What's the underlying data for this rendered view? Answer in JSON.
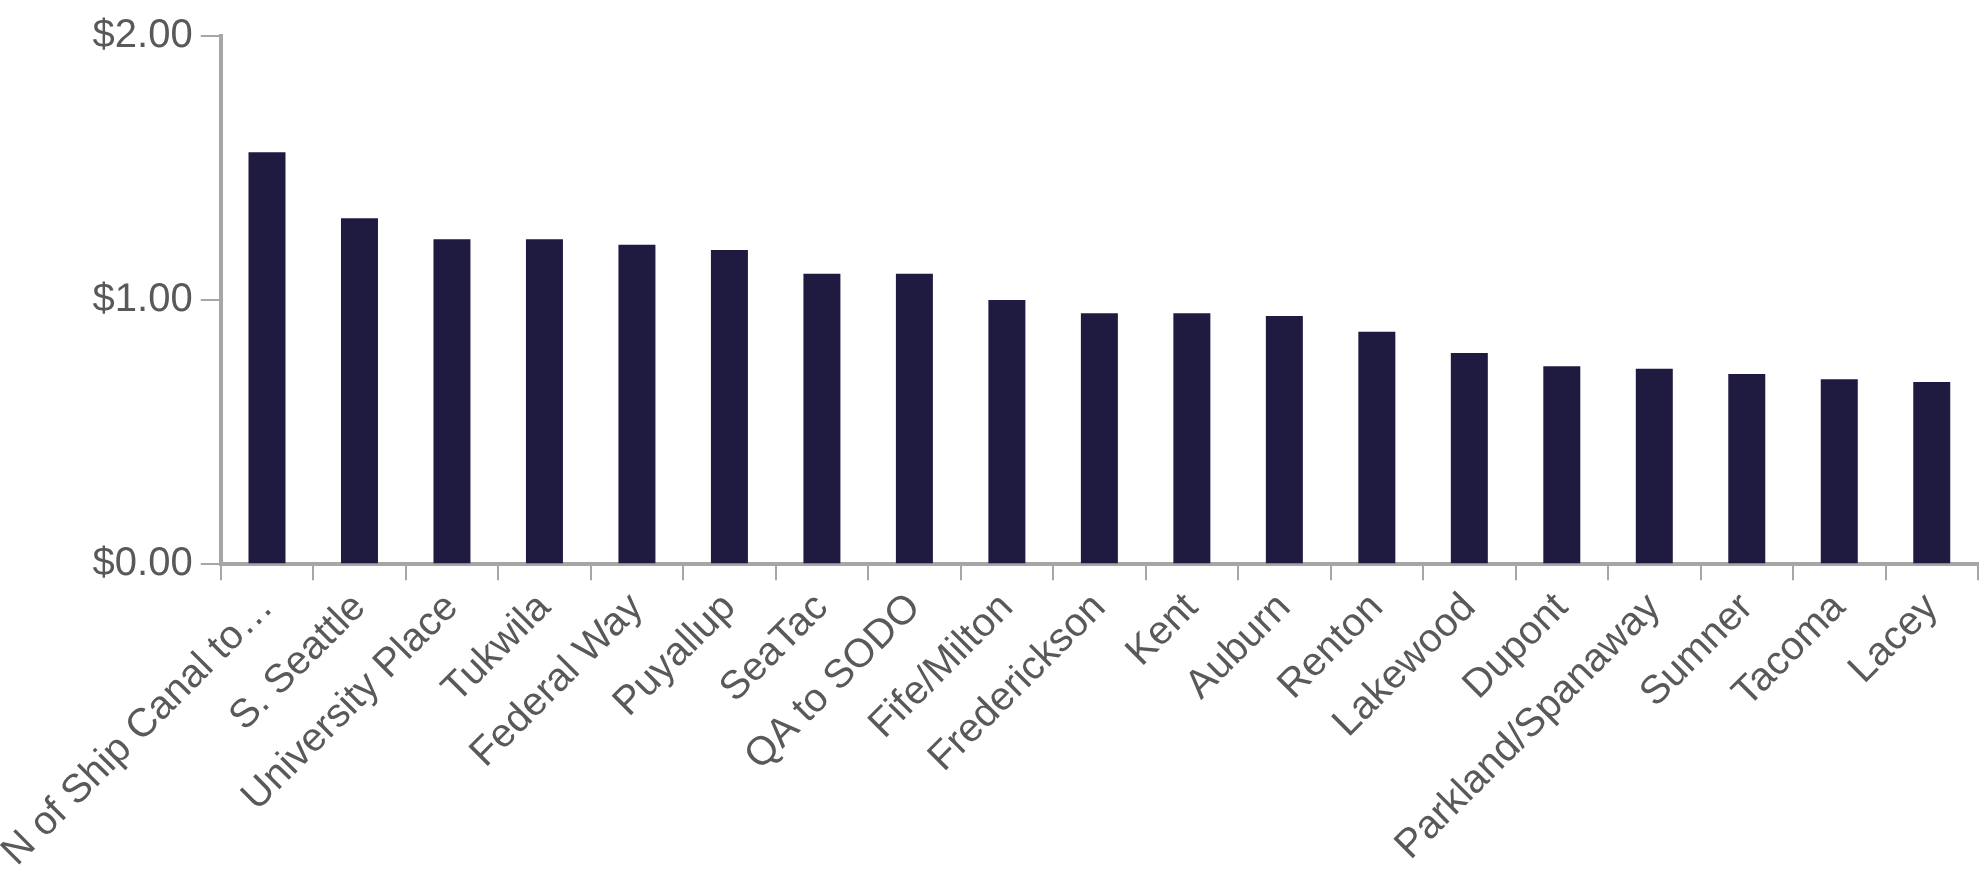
{
  "chart_data": {
    "type": "bar",
    "categories": [
      "N of Ship Canal to…",
      "S. Seattle",
      "University Place",
      "Tukwila",
      "Federal Way",
      "Puyallup",
      "SeaTac",
      "QA to SODO",
      "Fife/Milton",
      "Frederickson",
      "Kent",
      "Auburn",
      "Renton",
      "Lakewood",
      "Dupont",
      "Parkland/Spanaway",
      "Sumner",
      "Tacoma",
      "Lacey"
    ],
    "values": [
      1.56,
      1.31,
      1.23,
      1.23,
      1.21,
      1.19,
      1.1,
      1.1,
      1.0,
      0.95,
      0.95,
      0.94,
      0.88,
      0.8,
      0.75,
      0.74,
      0.72,
      0.7,
      0.69
    ],
    "color": "#1f1a40",
    "ylim": [
      0,
      2
    ],
    "yticks": [
      {
        "value": 0,
        "label": "$0.00"
      },
      {
        "value": 1,
        "label": "$1.00"
      },
      {
        "value": 2,
        "label": "$2.00"
      }
    ],
    "grid": false,
    "legend": false
  }
}
